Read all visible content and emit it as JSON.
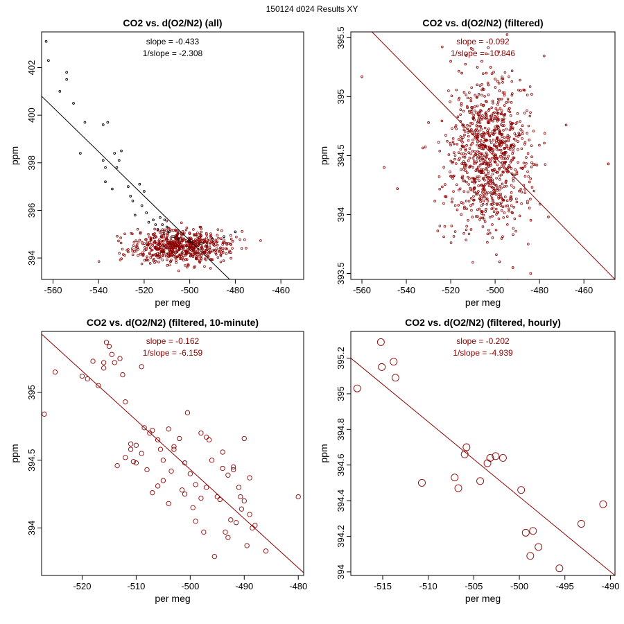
{
  "figure_title": "150124   d024   Results XY",
  "chart_data": [
    {
      "type": "scatter",
      "title": "CO2 vs. d(O2/N2) (all)",
      "xlabel": "per meg",
      "ylabel": "ppm",
      "xlim": [
        -565,
        -450
      ],
      "ylim": [
        393.1,
        403.5
      ],
      "xticks": [
        -560,
        -540,
        -520,
        -500,
        -480,
        -460
      ],
      "yticks": [
        394,
        396,
        398,
        400,
        402
      ],
      "slope_text": "slope = -0.433",
      "inv_slope_text": "1/slope = -2.308",
      "annotation_color": "#000000",
      "fit_line": {
        "x": [
          -565,
          -482.5
        ],
        "y": [
          400.8,
          393.1
        ],
        "color": "#000000"
      },
      "marker_size": 1.4,
      "filtered_cloud_stats": {
        "color": "#8b0000",
        "n": 650,
        "x_mean": -504,
        "x_sd": 11,
        "y_mean": 394.5,
        "y_sd": 0.35
      },
      "series": [
        {
          "color": "#000000",
          "x": [
            -563,
            -562,
            -557,
            -554,
            -554,
            -551,
            -548,
            -546,
            -538,
            -538,
            -537,
            -537,
            -536,
            -534,
            -533,
            -532,
            -531,
            -530,
            -527,
            -526,
            -525,
            -524,
            -522,
            -521,
            -520,
            -519,
            -518,
            -516,
            -515,
            -514,
            -513,
            -512,
            -511,
            -510,
            -509,
            -507,
            -505,
            -500,
            -495,
            -490,
            -485,
            -480
          ],
          "y": [
            403.1,
            402.3,
            401.0,
            401.8,
            401.5,
            400.5,
            398.4,
            399.7,
            399.6,
            398.1,
            397.8,
            397.2,
            399.7,
            396.9,
            398.4,
            397.8,
            398.1,
            398.5,
            397.0,
            396.6,
            396.4,
            395.8,
            397.1,
            396.2,
            396.8,
            395.9,
            395.5,
            395.6,
            395.4,
            395.2,
            395.7,
            395.4,
            395.6,
            395.3,
            395.1,
            394.9,
            394.8,
            394.7,
            394.6,
            394.8,
            394.9,
            395.1
          ]
        }
      ]
    },
    {
      "type": "scatter",
      "title": "CO2 vs. d(O2/N2) (filtered)",
      "xlabel": "per meg",
      "ylabel": "ppm",
      "xlim": [
        -565,
        -446
      ],
      "ylim": [
        393.45,
        395.55
      ],
      "xticks": [
        -560,
        -540,
        -520,
        -500,
        -480,
        -460
      ],
      "yticks": [
        393.5,
        394.0,
        394.5,
        395.0,
        395.5
      ],
      "slope_text": "slope = -0.092",
      "inv_slope_text": "1/slope = -10.846",
      "annotation_color": "#8b0000",
      "fit_line": {
        "x": [
          -555.5,
          -446
        ],
        "y": [
          395.55,
          393.45
        ],
        "color": "#8b0000"
      },
      "marker_size": 1.4,
      "filtered_cloud_stats": {
        "color": "#8b0000",
        "n": 900,
        "x_mean": -503,
        "x_sd": 9,
        "y_mean": 394.5,
        "y_sd": 0.32
      },
      "series": [
        {
          "color": "#8b0000",
          "x": [
            -520,
            -515,
            -513,
            -510,
            -508,
            -506,
            -504,
            -503,
            -502,
            -500,
            -498,
            -495,
            -560,
            -550,
            -544,
            -530,
            -468,
            -449,
            -476,
            -484,
            -492,
            -498
          ],
          "y": [
            395.3,
            395.2,
            395.35,
            395.4,
            395.25,
            395.3,
            395.2,
            395.1,
            395.25,
            395.15,
            395.05,
            394.95,
            395.17,
            394.4,
            394.22,
            394.78,
            394.76,
            394.43,
            393.98,
            393.5,
            393.55,
            393.6
          ]
        }
      ]
    },
    {
      "type": "scatter",
      "title": "CO2 vs. d(O2/N2) (filtered, 10-minute)",
      "xlabel": "per meg",
      "ylabel": "ppm",
      "xlim": [
        -527.5,
        -479
      ],
      "ylim": [
        393.65,
        395.45
      ],
      "xticks": [
        -520,
        -510,
        -500,
        -490,
        -480
      ],
      "yticks": [
        394.0,
        394.5,
        395.0
      ],
      "slope_text": "slope = -0.162",
      "inv_slope_text": "1/slope = -6.159",
      "annotation_color": "#8b0000",
      "fit_line": {
        "x": [
          -527.5,
          -479
        ],
        "y": [
          395.43,
          393.67
        ],
        "color": "#8b0000"
      },
      "marker_size": 3.2,
      "series": [
        {
          "color": "#8b0000",
          "x": [
            -527,
            -525,
            -520,
            -517,
            -516,
            -515.5,
            -515,
            -514.5,
            -514,
            -513,
            -512.5,
            -512,
            -511,
            -510.5,
            -510,
            -509,
            -508,
            -516,
            -518,
            -519,
            -509,
            -507,
            -506,
            -505,
            -503,
            -502,
            -501,
            -500,
            -499,
            -498,
            -497,
            -496,
            -495,
            -494,
            -493,
            -492,
            -491,
            -490,
            -489,
            -488,
            -486,
            -480,
            -505,
            -504,
            -503,
            -501,
            -499,
            -497,
            -494,
            -492,
            -490,
            -489,
            -489.5,
            -488.5,
            -490.5,
            -491.5,
            -493,
            -493.5,
            -495.5,
            -497.5,
            -499.5,
            -501.5,
            -503.5,
            -505.5,
            -507.5,
            -508.5,
            -510,
            -511,
            -512,
            -513.5,
            -506,
            -507,
            -504,
            -500.5,
            -498,
            -496.5,
            -494.5,
            -492.5,
            -490.7
          ],
          "y": [
            394.84,
            395.15,
            395.12,
            395.05,
            395.22,
            395.37,
            395.34,
            395.28,
            395.22,
            395.25,
            395.13,
            394.93,
            394.62,
            394.49,
            394.48,
            394.55,
            394.43,
            395.18,
            395.23,
            395.1,
            395.19,
            394.72,
            394.65,
            394.5,
            394.58,
            394.66,
            394.48,
            394.4,
            394.32,
            394.22,
            394.67,
            394.5,
            394.23,
            394.44,
            394.39,
            394.45,
            394.3,
            394.2,
            394.1,
            394.02,
            393.83,
            394.23,
            394.35,
            394.18,
            394.6,
            394.25,
            394.05,
            394.3,
            394.56,
            394.43,
            394.66,
            394.37,
            393.87,
            394.0,
            394.14,
            394.04,
            393.93,
            393.97,
            393.79,
            393.97,
            394.15,
            394.28,
            394.42,
            394.58,
            394.7,
            394.74,
            394.61,
            394.58,
            394.52,
            394.46,
            394.31,
            394.26,
            394.73,
            394.85,
            394.7,
            394.65,
            394.21,
            394.06,
            394.23
          ]
        }
      ]
    },
    {
      "type": "scatter",
      "title": "CO2 vs. d(O2/N2) (filtered, hourly)",
      "xlabel": "per meg",
      "ylabel": "ppm",
      "xlim": [
        -518.5,
        -489.5
      ],
      "ylim": [
        393.98,
        395.35
      ],
      "xticks": [
        -515,
        -510,
        -505,
        -500,
        -495,
        -490
      ],
      "yticks": [
        394.0,
        394.2,
        394.4,
        394.6,
        394.8,
        395.0,
        395.2
      ],
      "slope_text": "slope = -0.202",
      "inv_slope_text": "1/slope = -4.939",
      "annotation_color": "#8b0000",
      "fit_line": {
        "x": [
          -518.5,
          -489.5
        ],
        "y": [
          395.2,
          393.98
        ],
        "color": "#8b0000"
      },
      "marker_size": 5.0,
      "series": [
        {
          "color": "#8b0000",
          "x": [
            -517.8,
            -515.2,
            -515.1,
            -513.8,
            -513.6,
            -510.7,
            -507.1,
            -506.7,
            -506.0,
            -505.8,
            -504.3,
            -503.5,
            -503.2,
            -502.6,
            -501.8,
            -499.8,
            -499.3,
            -498.5,
            -498.8,
            -497.9,
            -495.6,
            -493.2,
            -490.8
          ],
          "y": [
            395.03,
            395.29,
            395.15,
            395.18,
            395.09,
            394.5,
            394.53,
            394.47,
            394.66,
            394.7,
            394.51,
            394.61,
            394.64,
            394.65,
            394.64,
            394.46,
            394.22,
            394.23,
            394.09,
            394.14,
            394.02,
            394.27,
            394.38
          ]
        }
      ]
    }
  ]
}
